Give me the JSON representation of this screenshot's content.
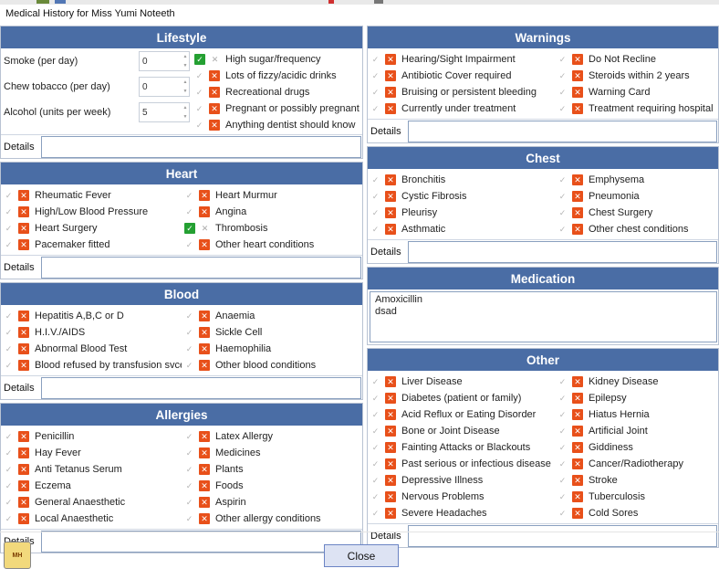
{
  "window": {
    "title": "Medical History for Miss Yumi Noteeth"
  },
  "colors": {
    "header": "#4a6da5",
    "x_on": "#e8501a",
    "tick_on": "#24a032"
  },
  "details_label": "Details",
  "lifestyle": {
    "header": "Lifestyle",
    "inputs": [
      {
        "label": "Smoke (per day)",
        "value": "0"
      },
      {
        "label": "Chew tobacco (per day)",
        "value": "0"
      },
      {
        "label": "Alcohol (units per week)",
        "value": "5"
      }
    ],
    "items": [
      {
        "label": "High sugar/frequency",
        "tick": true,
        "x": false
      },
      {
        "label": "Lots of fizzy/acidic drinks",
        "tick": false,
        "x": true
      },
      {
        "label": "Recreational drugs",
        "tick": false,
        "x": true
      },
      {
        "label": "Pregnant or possibly pregnant",
        "tick": false,
        "x": true
      },
      {
        "label": "Anything dentist should know",
        "tick": false,
        "x": true
      }
    ]
  },
  "heart": {
    "header": "Heart",
    "items": [
      {
        "label": "Rheumatic Fever",
        "tick": false,
        "x": true
      },
      {
        "label": "Heart Murmur",
        "tick": false,
        "x": true
      },
      {
        "label": "High/Low Blood Pressure",
        "tick": false,
        "x": true
      },
      {
        "label": "Angina",
        "tick": false,
        "x": true
      },
      {
        "label": "Heart Surgery",
        "tick": false,
        "x": true
      },
      {
        "label": "Thrombosis",
        "tick": true,
        "x": false
      },
      {
        "label": "Pacemaker fitted",
        "tick": false,
        "x": true
      },
      {
        "label": "Other heart conditions",
        "tick": false,
        "x": true
      }
    ]
  },
  "blood": {
    "header": "Blood",
    "items": [
      {
        "label": "Hepatitis A,B,C or D",
        "tick": false,
        "x": true
      },
      {
        "label": "Anaemia",
        "tick": false,
        "x": true
      },
      {
        "label": "H.I.V./AIDS",
        "tick": false,
        "x": true
      },
      {
        "label": "Sickle Cell",
        "tick": false,
        "x": true
      },
      {
        "label": "Abnormal Blood Test",
        "tick": false,
        "x": true
      },
      {
        "label": "Haemophilia",
        "tick": false,
        "x": true
      },
      {
        "label": "Blood refused by transfusion svce.",
        "tick": false,
        "x": true
      },
      {
        "label": "Other blood conditions",
        "tick": false,
        "x": true
      }
    ]
  },
  "allergies": {
    "header": "Allergies",
    "items": [
      {
        "label": "Penicillin",
        "tick": false,
        "x": true
      },
      {
        "label": "Latex Allergy",
        "tick": false,
        "x": true
      },
      {
        "label": "Hay Fever",
        "tick": false,
        "x": true
      },
      {
        "label": "Medicines",
        "tick": false,
        "x": true
      },
      {
        "label": "Anti Tetanus Serum",
        "tick": false,
        "x": true
      },
      {
        "label": "Plants",
        "tick": false,
        "x": true
      },
      {
        "label": "Eczema",
        "tick": false,
        "x": true
      },
      {
        "label": "Foods",
        "tick": false,
        "x": true
      },
      {
        "label": "General Anaesthetic",
        "tick": false,
        "x": true
      },
      {
        "label": "Aspirin",
        "tick": false,
        "x": true
      },
      {
        "label": "Local Anaesthetic",
        "tick": false,
        "x": true
      },
      {
        "label": "Other allergy conditions",
        "tick": false,
        "x": true
      }
    ]
  },
  "warnings": {
    "header": "Warnings",
    "items": [
      {
        "label": "Hearing/Sight Impairment",
        "tick": false,
        "x": true
      },
      {
        "label": "Do Not Recline",
        "tick": false,
        "x": true
      },
      {
        "label": "Antibiotic Cover required",
        "tick": false,
        "x": true
      },
      {
        "label": "Steroids within 2 years",
        "tick": false,
        "x": true
      },
      {
        "label": "Bruising or persistent bleeding",
        "tick": false,
        "x": true
      },
      {
        "label": "Warning Card",
        "tick": false,
        "x": true
      },
      {
        "label": "Currently under treatment",
        "tick": false,
        "x": true
      },
      {
        "label": "Treatment requiring hospital",
        "tick": false,
        "x": true
      }
    ]
  },
  "chest": {
    "header": "Chest",
    "items": [
      {
        "label": "Bronchitis",
        "tick": false,
        "x": true
      },
      {
        "label": "Emphysema",
        "tick": false,
        "x": true
      },
      {
        "label": "Cystic Fibrosis",
        "tick": false,
        "x": true
      },
      {
        "label": "Pneumonia",
        "tick": false,
        "x": true
      },
      {
        "label": "Pleurisy",
        "tick": false,
        "x": true
      },
      {
        "label": "Chest Surgery",
        "tick": false,
        "x": true
      },
      {
        "label": "Asthmatic",
        "tick": false,
        "x": true
      },
      {
        "label": "Other chest conditions",
        "tick": false,
        "x": true
      }
    ]
  },
  "medication": {
    "header": "Medication",
    "lines": [
      "Amoxicillin",
      "dsad"
    ]
  },
  "other": {
    "header": "Other",
    "items": [
      {
        "label": "Liver Disease",
        "tick": false,
        "x": true
      },
      {
        "label": "Kidney Disease",
        "tick": false,
        "x": true
      },
      {
        "label": "Diabetes (patient or family)",
        "tick": false,
        "x": true
      },
      {
        "label": "Epilepsy",
        "tick": false,
        "x": true
      },
      {
        "label": "Acid Reflux or Eating Disorder",
        "tick": false,
        "x": true
      },
      {
        "label": "Hiatus Hernia",
        "tick": false,
        "x": true
      },
      {
        "label": "Bone or Joint Disease",
        "tick": false,
        "x": true
      },
      {
        "label": "Artificial Joint",
        "tick": false,
        "x": true
      },
      {
        "label": "Fainting Attacks or Blackouts",
        "tick": false,
        "x": true
      },
      {
        "label": "Giddiness",
        "tick": false,
        "x": true
      },
      {
        "label": "Past serious or infectious disease",
        "tick": false,
        "x": true
      },
      {
        "label": "Cancer/Radiotherapy",
        "tick": false,
        "x": true
      },
      {
        "label": "Depressive Illness",
        "tick": false,
        "x": true
      },
      {
        "label": "Stroke",
        "tick": false,
        "x": true
      },
      {
        "label": "Nervous Problems",
        "tick": false,
        "x": true
      },
      {
        "label": "Tuberculosis",
        "tick": false,
        "x": true
      },
      {
        "label": "Severe Headaches",
        "tick": false,
        "x": true
      },
      {
        "label": "Cold Sores",
        "tick": false,
        "x": true
      }
    ]
  },
  "footer": {
    "close_label": "Close",
    "icon_text": "MH"
  }
}
